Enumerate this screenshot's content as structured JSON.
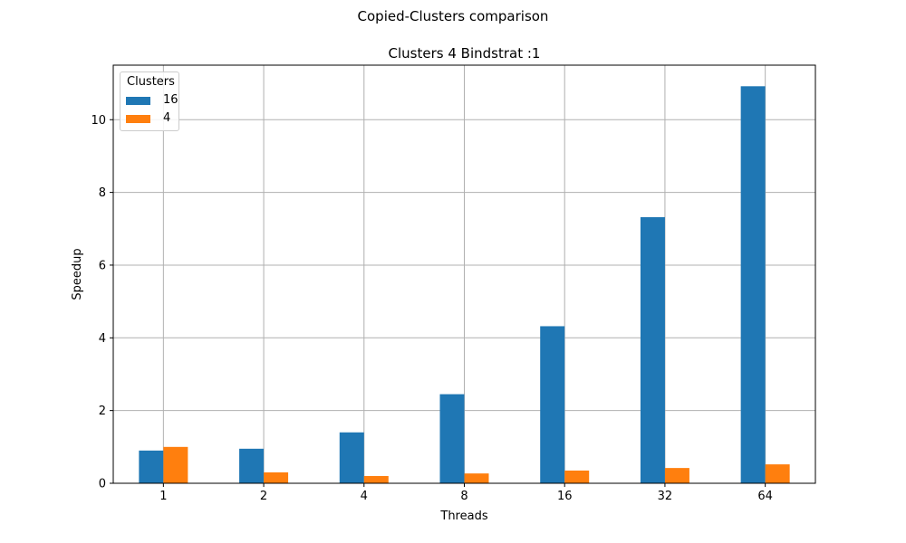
{
  "figure": {
    "suptitle": "Copied-Clusters comparison"
  },
  "chart_data": {
    "type": "bar",
    "title": "Clusters 4 Bindstrat :1",
    "xlabel": "Threads",
    "ylabel": "Speedup",
    "categories": [
      "1",
      "2",
      "4",
      "8",
      "16",
      "32",
      "64"
    ],
    "ylim": [
      0,
      11.5
    ],
    "yticks": [
      0,
      2,
      4,
      6,
      8,
      10
    ],
    "grid": true,
    "legend": {
      "title": "Clusters",
      "placement": "top-left"
    },
    "series": [
      {
        "name": "16",
        "color": "#1f77b4",
        "values": [
          0.9,
          0.95,
          1.4,
          2.45,
          4.32,
          7.32,
          10.92
        ]
      },
      {
        "name": "4",
        "color": "#ff7f0e",
        "values": [
          1.0,
          0.3,
          0.2,
          0.27,
          0.35,
          0.42,
          0.52
        ]
      }
    ]
  }
}
